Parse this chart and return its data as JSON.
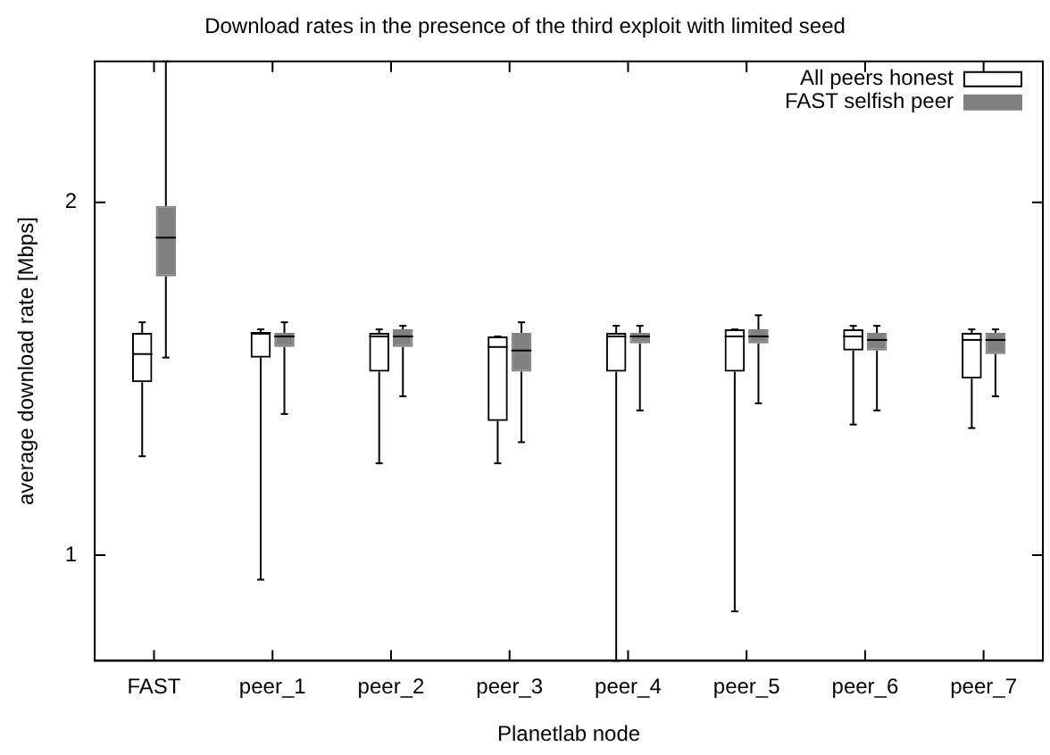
{
  "chart_data": {
    "type": "box",
    "title": "Download rates in the presence of the third exploit with limited seed",
    "xlabel": "Planetlab node",
    "ylabel": "average download rate [Mbps]",
    "categories": [
      "FAST",
      "peer_1",
      "peer_2",
      "peer_3",
      "peer_4",
      "peer_5",
      "peer_6",
      "peer_7"
    ],
    "ylim": [
      0.7,
      2.4
    ],
    "yticks": [
      1,
      2
    ],
    "grid": false,
    "legend": "top right",
    "series": [
      {
        "name": "All peers honest",
        "color": "#000000",
        "boxes": [
          {
            "low": 1.28,
            "q1": 1.49,
            "median": 1.57,
            "q3": 1.63,
            "high": 1.66
          },
          {
            "low": 0.93,
            "q1": 1.56,
            "median": 1.63,
            "q3": 1.63,
            "high": 1.64
          },
          {
            "low": 1.26,
            "q1": 1.52,
            "median": 1.62,
            "q3": 1.63,
            "high": 1.64
          },
          {
            "low": 1.26,
            "q1": 1.38,
            "median": 1.59,
            "q3": 1.62,
            "high": 1.62
          },
          {
            "low": 0.7,
            "q1": 1.52,
            "median": 1.62,
            "q3": 1.63,
            "high": 1.65
          },
          {
            "low": 0.84,
            "q1": 1.52,
            "median": 1.62,
            "q3": 1.64,
            "high": 1.64
          },
          {
            "low": 1.37,
            "q1": 1.58,
            "median": 1.62,
            "q3": 1.64,
            "high": 1.65
          },
          {
            "low": 1.36,
            "q1": 1.5,
            "median": 1.61,
            "q3": 1.63,
            "high": 1.64
          }
        ]
      },
      {
        "name": "FAST selfish peer",
        "color": "#808080",
        "boxes": [
          {
            "low": 1.56,
            "q1": 1.79,
            "median": 1.9,
            "q3": 1.99,
            "high": 2.4
          },
          {
            "low": 1.4,
            "q1": 1.59,
            "median": 1.62,
            "q3": 1.63,
            "high": 1.66
          },
          {
            "low": 1.45,
            "q1": 1.59,
            "median": 1.62,
            "q3": 1.64,
            "high": 1.65
          },
          {
            "low": 1.32,
            "q1": 1.52,
            "median": 1.58,
            "q3": 1.63,
            "high": 1.66
          },
          {
            "low": 1.41,
            "q1": 1.6,
            "median": 1.62,
            "q3": 1.63,
            "high": 1.65
          },
          {
            "low": 1.43,
            "q1": 1.6,
            "median": 1.62,
            "q3": 1.64,
            "high": 1.68
          },
          {
            "low": 1.41,
            "q1": 1.58,
            "median": 1.61,
            "q3": 1.63,
            "high": 1.65
          },
          {
            "low": 1.45,
            "q1": 1.57,
            "median": 1.61,
            "q3": 1.63,
            "high": 1.64
          }
        ]
      }
    ]
  }
}
